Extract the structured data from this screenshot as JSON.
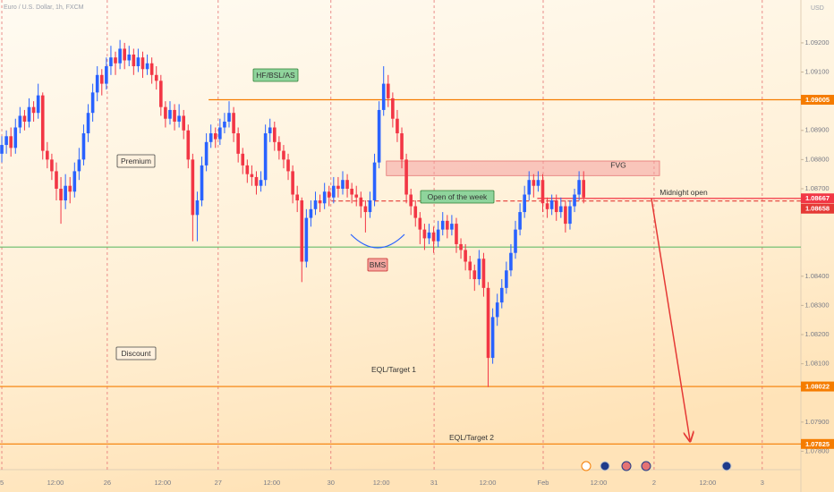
{
  "chart_data": {
    "type": "candlestick",
    "title": "Euro / U.S. Dollar, 1h, FXCM",
    "currency": "USD",
    "up_color": "#2962ff",
    "down_color": "#f23645",
    "xlim": [
      -0.4,
      175.8
    ],
    "ylim": [
      1.07737,
      1.09347
    ],
    "xticks": [
      {
        "value": 0,
        "label": "5"
      },
      {
        "value": 23.2,
        "label": "26"
      },
      {
        "value": 47.6,
        "label": "27"
      },
      {
        "value": 72.4,
        "label": "30"
      },
      {
        "value": 95.1,
        "label": "31"
      },
      {
        "value": 119.1,
        "label": "Feb"
      },
      {
        "value": 143.5,
        "label": "2"
      },
      {
        "value": 167.3,
        "label": "3"
      }
    ],
    "xticks_minor": [
      {
        "value": 11.8,
        "label": "12:00"
      },
      {
        "value": 35.4,
        "label": "12:00"
      },
      {
        "value": 59.4,
        "label": "12:00"
      },
      {
        "value": 83.5,
        "label": "12:00"
      },
      {
        "value": 106.9,
        "label": "12:00"
      },
      {
        "value": 131.3,
        "label": "12:00"
      },
      {
        "value": 155.3,
        "label": "12:00"
      }
    ],
    "yticks": [
      {
        "value": 1.092,
        "label": "1.09200"
      },
      {
        "value": 1.091,
        "label": "1.09100"
      },
      {
        "value": 1.089,
        "label": "1.08900"
      },
      {
        "value": 1.088,
        "label": "1.08800"
      },
      {
        "value": 1.087,
        "label": "1.08700"
      },
      {
        "value": 1.084,
        "label": "1.08400"
      },
      {
        "value": 1.083,
        "label": "1.08300"
      },
      {
        "value": 1.082,
        "label": "1.08200"
      },
      {
        "value": 1.081,
        "label": "1.08100"
      },
      {
        "value": 1.079,
        "label": "1.07900"
      },
      {
        "value": 1.078,
        "label": "1.07800"
      }
    ],
    "x": [
      0,
      1,
      2,
      3,
      4,
      5,
      6,
      7,
      8,
      9,
      10,
      11,
      12,
      13,
      14,
      15,
      16,
      17,
      18,
      19,
      20,
      21,
      22,
      23,
      24,
      25,
      26,
      27,
      28,
      29,
      30,
      31,
      32,
      33,
      34,
      35,
      36,
      37,
      38,
      39,
      40,
      41,
      42,
      43,
      44,
      45,
      46,
      47,
      48,
      49,
      50,
      51,
      52,
      53,
      54,
      55,
      56,
      57,
      58,
      59,
      60,
      61,
      62,
      63,
      64,
      65,
      66,
      67,
      68,
      69,
      70,
      71,
      72,
      73,
      74,
      75,
      76,
      77,
      78,
      79,
      80,
      81,
      82,
      83,
      84,
      85,
      86,
      87,
      88,
      89,
      90,
      91,
      92,
      93,
      94,
      95,
      96,
      97,
      98,
      99,
      100,
      101,
      102,
      103,
      104,
      105,
      106,
      107,
      108,
      109,
      110,
      111,
      112,
      113,
      114,
      115,
      116,
      117,
      118,
      119,
      120,
      121,
      122,
      123,
      124,
      125,
      126,
      127,
      128
    ],
    "candles": [
      [
        1.0882,
        1.0888,
        1.0879,
        1.0885
      ],
      [
        1.0885,
        1.089,
        1.0882,
        1.0888
      ],
      [
        1.0888,
        1.0891,
        1.0881,
        1.0884
      ],
      [
        1.0884,
        1.0894,
        1.0882,
        1.0891
      ],
      [
        1.0891,
        1.0898,
        1.0889,
        1.0895
      ],
      [
        1.0895,
        1.0897,
        1.089,
        1.0893
      ],
      [
        1.0893,
        1.0901,
        1.0891,
        1.0898
      ],
      [
        1.0898,
        1.09,
        1.0893,
        1.0896
      ],
      [
        1.0896,
        1.0906,
        1.0894,
        1.0902
      ],
      [
        1.0902,
        1.0903,
        1.088,
        1.0883
      ],
      [
        1.0883,
        1.0886,
        1.0877,
        1.088
      ],
      [
        1.088,
        1.0882,
        1.0873,
        1.0876
      ],
      [
        1.0876,
        1.0879,
        1.0866,
        1.087
      ],
      [
        1.087,
        1.0874,
        1.0858,
        1.0866
      ],
      [
        1.0866,
        1.0875,
        1.0863,
        1.0871
      ],
      [
        1.0871,
        1.0874,
        1.0865,
        1.0869
      ],
      [
        1.0869,
        1.0879,
        1.0867,
        1.0876
      ],
      [
        1.0876,
        1.0884,
        1.0873,
        1.088
      ],
      [
        1.088,
        1.0892,
        1.0878,
        1.0889
      ],
      [
        1.0889,
        1.0899,
        1.0886,
        1.0896
      ],
      [
        1.0896,
        1.0906,
        1.0893,
        1.0903
      ],
      [
        1.0903,
        1.0912,
        1.09,
        1.0909
      ],
      [
        1.0909,
        1.0911,
        1.0902,
        1.0906
      ],
      [
        1.0906,
        1.0915,
        1.0904,
        1.0912
      ],
      [
        1.0912,
        1.0919,
        1.0909,
        1.0915
      ],
      [
        1.0915,
        1.0917,
        1.0909,
        1.0913
      ],
      [
        1.0913,
        1.0921,
        1.0911,
        1.0918
      ],
      [
        1.0918,
        1.092,
        1.0911,
        1.0914
      ],
      [
        1.0914,
        1.0919,
        1.0912,
        1.0916
      ],
      [
        1.0916,
        1.0918,
        1.0909,
        1.0912
      ],
      [
        1.0912,
        1.0918,
        1.091,
        1.0915
      ],
      [
        1.0915,
        1.0917,
        1.0908,
        1.0911
      ],
      [
        1.0911,
        1.0916,
        1.0909,
        1.0913
      ],
      [
        1.0913,
        1.0915,
        1.0906,
        1.0909
      ],
      [
        1.0909,
        1.0912,
        1.0904,
        1.0907
      ],
      [
        1.0907,
        1.0909,
        1.0895,
        1.0898
      ],
      [
        1.0898,
        1.09,
        1.0891,
        1.0894
      ],
      [
        1.0894,
        1.09,
        1.0892,
        1.0897
      ],
      [
        1.0897,
        1.0899,
        1.089,
        1.0893
      ],
      [
        1.0893,
        1.0899,
        1.0891,
        1.0895
      ],
      [
        1.0895,
        1.0897,
        1.0887,
        1.089
      ],
      [
        1.089,
        1.0892,
        1.0877,
        1.088
      ],
      [
        1.088,
        1.0882,
        1.0852,
        1.0861
      ],
      [
        1.0861,
        1.0869,
        1.0852,
        1.0866
      ],
      [
        1.0866,
        1.0881,
        1.0864,
        1.0878
      ],
      [
        1.0878,
        1.0889,
        1.0876,
        1.0886
      ],
      [
        1.0886,
        1.0892,
        1.0884,
        1.0889
      ],
      [
        1.0889,
        1.0891,
        1.0884,
        1.0887
      ],
      [
        1.0887,
        1.0894,
        1.0885,
        1.0891
      ],
      [
        1.0891,
        1.0896,
        1.0889,
        1.0893
      ],
      [
        1.0893,
        1.09,
        1.0891,
        1.0896
      ],
      [
        1.0896,
        1.0898,
        1.0886,
        1.0889
      ],
      [
        1.0889,
        1.0891,
        1.0879,
        1.0882
      ],
      [
        1.0882,
        1.0884,
        1.0875,
        1.0878
      ],
      [
        1.0878,
        1.088,
        1.0872,
        1.0875
      ],
      [
        1.0875,
        1.0878,
        1.0871,
        1.0874
      ],
      [
        1.0874,
        1.0876,
        1.0868,
        1.0871
      ],
      [
        1.0871,
        1.0876,
        1.0869,
        1.0873
      ],
      [
        1.0873,
        1.0892,
        1.0871,
        1.0889
      ],
      [
        1.0889,
        1.0894,
        1.0886,
        1.0891
      ],
      [
        1.0891,
        1.0893,
        1.0883,
        1.0886
      ],
      [
        1.0886,
        1.0888,
        1.088,
        1.0883
      ],
      [
        1.0883,
        1.0885,
        1.0877,
        1.088
      ],
      [
        1.088,
        1.0882,
        1.0873,
        1.0876
      ],
      [
        1.0876,
        1.0878,
        1.0865,
        1.0868
      ],
      [
        1.0868,
        1.0871,
        1.0862,
        1.0866
      ],
      [
        1.0866,
        1.0867,
        1.0838,
        1.0845
      ],
      [
        1.0845,
        1.0863,
        1.0843,
        1.086
      ],
      [
        1.086,
        1.0866,
        1.0857,
        1.0863
      ],
      [
        1.0863,
        1.0869,
        1.0861,
        1.0866
      ],
      [
        1.0866,
        1.0868,
        1.0862,
        1.0865
      ],
      [
        1.0865,
        1.0872,
        1.0863,
        1.0869
      ],
      [
        1.0869,
        1.0871,
        1.0864,
        1.0867
      ],
      [
        1.0867,
        1.0874,
        1.0865,
        1.0871
      ],
      [
        1.0871,
        1.0874,
        1.0867,
        1.087
      ],
      [
        1.087,
        1.0876,
        1.0868,
        1.0873
      ],
      [
        1.0873,
        1.0875,
        1.0867,
        1.087
      ],
      [
        1.087,
        1.0872,
        1.0865,
        1.0868
      ],
      [
        1.0868,
        1.0871,
        1.0864,
        1.0867
      ],
      [
        1.0867,
        1.0869,
        1.086,
        1.0864
      ],
      [
        1.0864,
        1.0866,
        1.0855,
        1.0862
      ],
      [
        1.0862,
        1.0869,
        1.086,
        1.0866
      ],
      [
        1.0866,
        1.0882,
        1.0864,
        1.0879
      ],
      [
        1.0879,
        1.09,
        1.0877,
        1.0897
      ],
      [
        1.0897,
        1.0912,
        1.0895,
        1.0906
      ],
      [
        1.0906,
        1.0909,
        1.0898,
        1.0901
      ],
      [
        1.0901,
        1.0903,
        1.0891,
        1.0894
      ],
      [
        1.0894,
        1.0897,
        1.0886,
        1.0889
      ],
      [
        1.0889,
        1.0891,
        1.0877,
        1.088
      ],
      [
        1.088,
        1.0882,
        1.0865,
        1.0868
      ],
      [
        1.0868,
        1.087,
        1.0861,
        1.0864
      ],
      [
        1.0864,
        1.0866,
        1.0857,
        1.086
      ],
      [
        1.086,
        1.0862,
        1.0851,
        1.0856
      ],
      [
        1.0856,
        1.0858,
        1.0849,
        1.0853
      ],
      [
        1.0853,
        1.0858,
        1.0851,
        1.0855
      ],
      [
        1.0855,
        1.0857,
        1.0848,
        1.0852
      ],
      [
        1.0852,
        1.0859,
        1.085,
        1.0856
      ],
      [
        1.0856,
        1.0862,
        1.0854,
        1.0859
      ],
      [
        1.0859,
        1.0861,
        1.0853,
        1.0856
      ],
      [
        1.0856,
        1.0861,
        1.0854,
        1.0858
      ],
      [
        1.0858,
        1.086,
        1.0848,
        1.0851
      ],
      [
        1.0851,
        1.0853,
        1.0846,
        1.0849
      ],
      [
        1.0849,
        1.0851,
        1.0842,
        1.0845
      ],
      [
        1.0845,
        1.0847,
        1.0839,
        1.0842
      ],
      [
        1.0842,
        1.0844,
        1.0835,
        1.0839
      ],
      [
        1.0839,
        1.0849,
        1.0837,
        1.0846
      ],
      [
        1.0846,
        1.0848,
        1.0833,
        1.0836
      ],
      [
        1.0836,
        1.0838,
        1.0802,
        1.0812
      ],
      [
        1.0812,
        1.0829,
        1.081,
        1.0826
      ],
      [
        1.0826,
        1.0834,
        1.0823,
        1.0831
      ],
      [
        1.0831,
        1.0839,
        1.0829,
        1.0836
      ],
      [
        1.0836,
        1.0845,
        1.0834,
        1.0842
      ],
      [
        1.0842,
        1.0851,
        1.084,
        1.0848
      ],
      [
        1.0848,
        1.0859,
        1.0846,
        1.0856
      ],
      [
        1.0856,
        1.0865,
        1.0854,
        1.0862
      ],
      [
        1.0862,
        1.0871,
        1.086,
        1.0868
      ],
      [
        1.0868,
        1.0876,
        1.0866,
        1.0873
      ],
      [
        1.0873,
        1.0875,
        1.0867,
        1.0871
      ],
      [
        1.0871,
        1.0876,
        1.0869,
        1.0873
      ],
      [
        1.0873,
        1.0875,
        1.0862,
        1.0865
      ],
      [
        1.0865,
        1.0867,
        1.086,
        1.0863
      ],
      [
        1.0863,
        1.0868,
        1.0861,
        1.0866
      ],
      [
        1.0866,
        1.0868,
        1.0859,
        1.0862
      ],
      [
        1.0862,
        1.0867,
        1.086,
        1.0864
      ],
      [
        1.0864,
        1.0866,
        1.0855,
        1.0858
      ],
      [
        1.0858,
        1.0866,
        1.0856,
        1.0864
      ],
      [
        1.0864,
        1.087,
        1.0862,
        1.0868
      ],
      [
        1.0868,
        1.0876,
        1.0866,
        1.0873
      ],
      [
        1.0873,
        1.0876,
        1.0865,
        1.0867
      ]
    ],
    "levels": [
      {
        "value": 1.09005,
        "label": "1.09005",
        "color": "#f57c00",
        "from": 45.5
      },
      {
        "value": 1.08667,
        "label": "1.08667",
        "color": "#f23645",
        "from": 117.8
      },
      {
        "value": 1.08658,
        "label": "1.08658",
        "color": "#e53935",
        "from": 72.5,
        "dashed": true
      },
      {
        "value": 1.085,
        "color": "#66bb6a"
      },
      {
        "value": 1.08022,
        "label": "1.08022",
        "color": "#f57c00"
      },
      {
        "value": 1.07825,
        "label": "1.07825",
        "color": "#f57c00"
      }
    ],
    "fvg": {
      "label": "FVG",
      "top": 1.08795,
      "bottom": 1.08745,
      "start": 84.6,
      "end": 144.7,
      "color": "#f4a0a0"
    },
    "annotations": [
      {
        "text": "HF/BSL/AS",
        "box": "#8fd49c",
        "border": "#2e7d32"
      },
      {
        "text": "Premium",
        "box": "#fff1de",
        "border": "#444444"
      },
      {
        "text": "Discount",
        "box": "#fff1de",
        "border": "#444444"
      },
      {
        "text": "Open of the week",
        "box": "#8fd49c",
        "border": "#2e7d32"
      },
      {
        "text": "BMS",
        "box": "#f4a6a0",
        "border": "#c62828"
      },
      {
        "text": "Midnight open"
      },
      {
        "text": "EQL/Target 1"
      },
      {
        "text": "EQL/Target 2"
      }
    ]
  }
}
